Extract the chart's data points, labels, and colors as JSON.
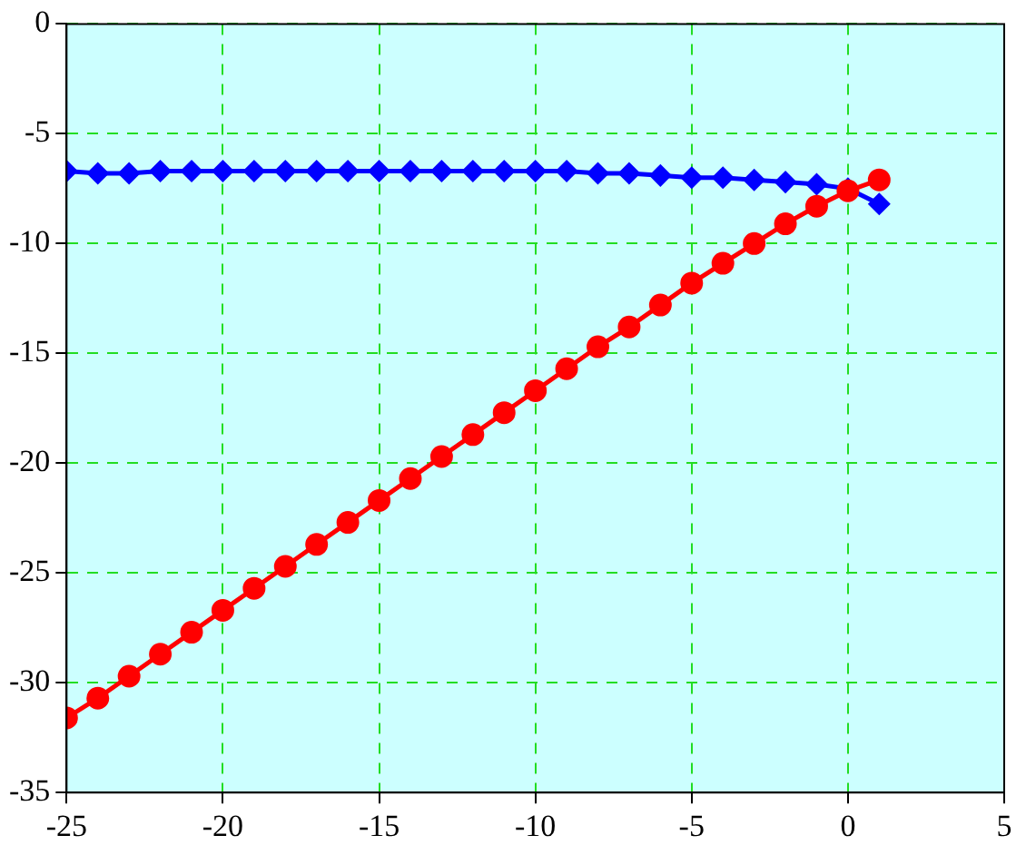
{
  "chart_data": {
    "type": "line",
    "x": [
      -25,
      -24,
      -23,
      -22,
      -21,
      -20,
      -19,
      -18,
      -17,
      -16,
      -15,
      -14,
      -13,
      -12,
      -11,
      -10,
      -9,
      -8,
      -7,
      -6,
      -5,
      -4,
      -3,
      -2,
      -1,
      0,
      1
    ],
    "series": [
      {
        "color": "#0000ff",
        "marker": "diamond",
        "values": [
          -6.7,
          -6.8,
          -6.8,
          -6.7,
          -6.7,
          -6.7,
          -6.7,
          -6.7,
          -6.7,
          -6.7,
          -6.7,
          -6.7,
          -6.7,
          -6.7,
          -6.7,
          -6.7,
          -6.7,
          -6.8,
          -6.8,
          -6.9,
          -7.0,
          -7.0,
          -7.1,
          -7.2,
          -7.3,
          -7.5,
          -8.2
        ]
      },
      {
        "color": "#ff0000",
        "marker": "circle",
        "values": [
          -31.6,
          -30.7,
          -29.7,
          -28.7,
          -27.7,
          -26.7,
          -25.7,
          -24.7,
          -23.7,
          -22.7,
          -21.7,
          -20.7,
          -19.7,
          -18.7,
          -17.7,
          -16.7,
          -15.7,
          -14.7,
          -13.8,
          -12.8,
          -11.8,
          -10.9,
          -10.0,
          -9.1,
          -8.3,
          -7.6,
          -7.1
        ]
      }
    ],
    "xlim": [
      -25,
      5
    ],
    "xticks": [
      -25,
      -20,
      -15,
      -10,
      -5,
      0,
      5
    ],
    "ylim": [
      -35,
      0
    ],
    "yticks": [
      -35,
      -30,
      -25,
      -20,
      -15,
      -10,
      -5,
      0
    ],
    "grid": true,
    "line_style": "solid"
  }
}
